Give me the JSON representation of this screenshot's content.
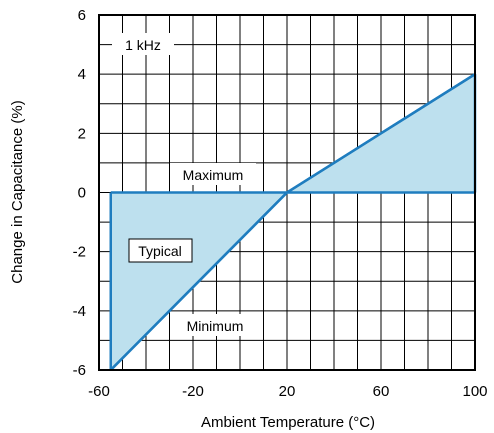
{
  "chart_data": {
    "type": "area",
    "xlabel": "Ambient Temperature (°C)",
    "ylabel": "Change in Capacitance (%)",
    "xlim": [
      -60,
      100
    ],
    "ylim": [
      -6,
      6
    ],
    "x_ticks": [
      "-60",
      "-20",
      "20",
      "60",
      "100"
    ],
    "y_ticks": [
      "6",
      "4",
      "2",
      "0",
      "-2",
      "-4",
      "-6"
    ],
    "grid": true,
    "series": [
      {
        "name": "Maximum",
        "x": [
          -55,
          20,
          100
        ],
        "y": [
          0,
          0,
          4
        ]
      },
      {
        "name": "Minimum",
        "x": [
          -55,
          20,
          100
        ],
        "y": [
          -6,
          0,
          0
        ]
      },
      {
        "name": "Typical",
        "x": [
          -55,
          20,
          100
        ],
        "y": [
          -6,
          0,
          4
        ]
      }
    ],
    "annotations": [
      "1 kHz",
      "Maximum",
      "Typical",
      "Minimum"
    ],
    "colors": {
      "fill": "#bde0ee",
      "line": "#1f7dbf",
      "grid": "#000000"
    }
  }
}
